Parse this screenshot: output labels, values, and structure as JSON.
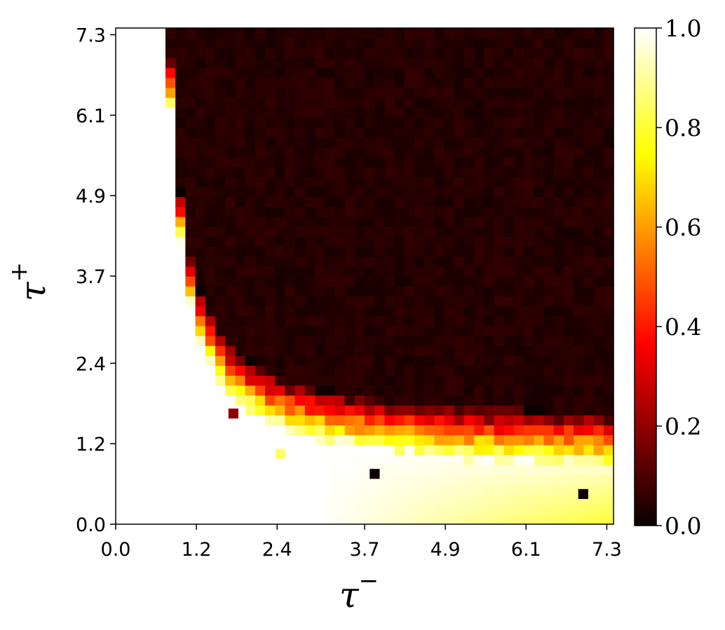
{
  "chart_data": {
    "type": "heatmap",
    "title": "",
    "xlabel": "τ",
    "xlabel_sup": "−",
    "ylabel": "τ",
    "ylabel_sup": "+",
    "xlim": [
      0.0,
      7.4
    ],
    "ylim": [
      0.0,
      7.4
    ],
    "grid": false,
    "x_ticks": [
      "0.0",
      "1.2",
      "2.4",
      "3.7",
      "4.9",
      "6.1",
      "7.3"
    ],
    "y_ticks": [
      "0.0",
      "1.2",
      "2.4",
      "3.7",
      "4.9",
      "6.1",
      "7.3"
    ],
    "colormap": "hot",
    "colorbar": {
      "range": [
        0.0,
        1.0
      ],
      "ticks": [
        "0.0",
        "0.2",
        "0.4",
        "0.6",
        "0.8",
        "1.0"
      ],
      "placement": "right"
    },
    "grid_size": 50,
    "value_description_model": {
      "boundary_tau_minus_at_high_tau_plus": 0.6,
      "boundary_tau_plus_at_high_tau_minus": 1.0,
      "low_region_value": 1.0,
      "high_region_value": 0.0,
      "bottom_right_corner_value": 0.8
    },
    "anomalies": [
      {
        "tau_minus": 3.85,
        "tau_plus": 0.75,
        "value": 0.0
      },
      {
        "tau_minus": 6.95,
        "tau_plus": 0.45,
        "value": 0.0
      },
      {
        "tau_minus": 1.75,
        "tau_plus": 1.65,
        "value": 0.2
      },
      {
        "tau_minus": 2.45,
        "tau_plus": 1.05,
        "value": 0.85
      }
    ]
  }
}
